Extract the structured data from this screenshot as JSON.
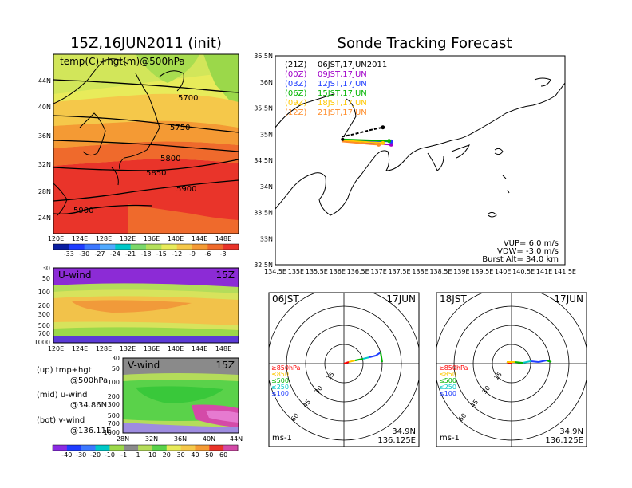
{
  "left_panel": {
    "title": "15Z,16JUN2011 (init)",
    "top_map": {
      "label": "temp(C)+hgt(m)@500hPa",
      "lat_ticks": [
        "44N",
        "40N",
        "36N",
        "32N",
        "28N",
        "24N"
      ],
      "lon_ticks": [
        "120E",
        "124E",
        "128E",
        "132E",
        "136E",
        "140E",
        "144E",
        "148E"
      ],
      "contour_labels": [
        "5700",
        "5750",
        "5800",
        "5850",
        "5900",
        "5900"
      ],
      "colorbar_ticks": [
        "-33",
        "-30",
        "-27",
        "-24",
        "-21",
        "-18",
        "-15",
        "-12",
        "-9",
        "-6",
        "-3"
      ]
    },
    "uwind": {
      "label": "U-wind",
      "time": "15Z",
      "y_ticks": [
        "30",
        "50",
        "100",
        "200",
        "300",
        "500",
        "700",
        "1000"
      ],
      "x_ticks": [
        "120E",
        "124E",
        "128E",
        "132E",
        "136E",
        "140E",
        "144E",
        "148E"
      ]
    },
    "vwind": {
      "label": "V-wind",
      "time": "15Z",
      "y_ticks": [
        "30",
        "50",
        "100",
        "200",
        "300",
        "500",
        "700",
        "1000"
      ],
      "x_ticks": [
        "28N",
        "32N",
        "36N",
        "40N",
        "44N"
      ],
      "colorbar_ticks": [
        "-40",
        "-30",
        "-20",
        "-10",
        "-1",
        "1",
        "10",
        "20",
        "30",
        "40",
        "50",
        "60"
      ]
    },
    "legend_lines": [
      "(up) tmp+hgt",
      "@500hPa",
      "(mid) u-wind",
      "@34.86N",
      "(bot) v-wind",
      "@136.11E"
    ]
  },
  "right_panel": {
    "title": "Sonde Tracking Forecast",
    "track_map": {
      "lat_ticks": [
        "36.5N",
        "36N",
        "35.5N",
        "35N",
        "34.5N",
        "34N",
        "33.5N",
        "33N",
        "32.5N"
      ],
      "lon_ticks": [
        "134.5E",
        "135E",
        "135.5E",
        "136E",
        "136.5E",
        "137E",
        "137.5E",
        "138E",
        "138.5E",
        "139E",
        "139.5E",
        "140E",
        "140.5E",
        "141E",
        "141.5E"
      ],
      "launches": [
        {
          "run": "(21Z)",
          "time": "06JST,17JUN2011",
          "color": "#000000"
        },
        {
          "run": "(00Z)",
          "time": "09JST,17JUN",
          "color": "#a000c8"
        },
        {
          "run": "(03Z)",
          "time": "12JST,17JUN",
          "color": "#1e3cff"
        },
        {
          "run": "(06Z)",
          "time": "15JST,17JUN",
          "color": "#00b400"
        },
        {
          "run": "(09Z)",
          "time": "18JST,17JUN",
          "color": "#ffc800"
        },
        {
          "run": "(12Z)",
          "time": "21JST,17JUN",
          "color": "#ff8c28"
        }
      ],
      "params": [
        "VUP= 6.0 m/s",
        "VDW= -3.0 m/s",
        "Burst Alt= 34.0 km"
      ]
    },
    "hodographs": [
      {
        "left": "06JST",
        "right": "17JUN"
      },
      {
        "left": "18JST",
        "right": "17JUN"
      }
    ],
    "hodo_common": {
      "ring_labels": [
        "15",
        "30",
        "45",
        "60"
      ],
      "levels": [
        "≥850hPa",
        "≤850",
        "≤500",
        "≤250",
        "≤100"
      ],
      "level_colors": [
        "#ff0000",
        "#ffc800",
        "#00b400",
        "#00c8c8",
        "#1e3cff"
      ],
      "unit": "ms-1",
      "lat": "34.9N",
      "lon": "136.125E"
    }
  },
  "chart_data": [
    {
      "type": "heatmap",
      "title": "15Z,16JUN2011 (init)",
      "subtitle": "temp(C)+hgt(m)@500hPa",
      "xlim": [
        120,
        149
      ],
      "ylim": [
        22,
        47
      ],
      "contours": [
        {
          "value": 5700,
          "label_at": [
            142.5,
            41.8
          ]
        },
        {
          "value": 5750,
          "label_at": [
            135.5,
            36.6
          ]
        },
        {
          "value": 5800,
          "label_at": [
            135.5,
            33.2
          ]
        },
        {
          "value": 5850,
          "label_at": [
            133,
            30.6
          ]
        },
        {
          "value": 5900,
          "label_at": [
            140.5,
            28.6
          ]
        },
        {
          "value": 5900,
          "label_at": [
            124,
            24.8
          ]
        }
      ],
      "colorbar": [
        -33,
        -30,
        -27,
        -24,
        -21,
        -18,
        -15,
        -12,
        -9,
        -6,
        -3
      ]
    },
    {
      "type": "heatmap",
      "label": "U-wind",
      "xlabel": "",
      "ylabel": "",
      "x_ticks": [
        "120E",
        "124E",
        "128E",
        "132E",
        "136E",
        "140E",
        "144E",
        "148E"
      ],
      "y_ticks": [
        30,
        50,
        100,
        200,
        300,
        500,
        700,
        1000
      ]
    },
    {
      "type": "heatmap",
      "label": "V-wind",
      "x_ticks": [
        "28N",
        "32N",
        "36N",
        "40N",
        "44N"
      ],
      "y_ticks": [
        30,
        50,
        100,
        200,
        300,
        500,
        700,
        1000
      ],
      "colorbar": [
        -40,
        -30,
        -20,
        -10,
        -1,
        1,
        10,
        20,
        30,
        40,
        50,
        60
      ]
    },
    {
      "type": "line",
      "title": "Sonde Tracking Forecast",
      "xlim": [
        134.5,
        141.5
      ],
      "ylim": [
        32.5,
        36.5
      ],
      "launch_point": {
        "lon": 136.125,
        "lat": 34.9
      },
      "series": [
        {
          "name": "(21Z) 06JST,17JUN2011",
          "color": "#000000",
          "x": [
            136.1,
            136.4,
            136.8,
            137.1
          ],
          "y": [
            34.95,
            35.0,
            35.08,
            35.13
          ]
        },
        {
          "name": "(00Z) 09JST,17JUN",
          "color": "#a000c8",
          "x": [
            136.1,
            136.5,
            136.9,
            137.3
          ],
          "y": [
            34.88,
            34.85,
            34.82,
            34.8
          ]
        },
        {
          "name": "(03Z) 12JST,17JUN",
          "color": "#1e3cff",
          "x": [
            136.1,
            136.5,
            136.9,
            137.3
          ],
          "y": [
            34.9,
            34.88,
            34.87,
            34.86
          ]
        },
        {
          "name": "(06Z) 15JST,17JUN",
          "color": "#00b400",
          "x": [
            136.1,
            136.5,
            136.9,
            137.25
          ],
          "y": [
            34.9,
            34.89,
            34.88,
            34.87
          ]
        },
        {
          "name": "(09Z) 18JST,17JUN",
          "color": "#ffc800",
          "x": [
            136.1,
            136.5,
            136.9,
            137.1
          ],
          "y": [
            34.88,
            34.86,
            34.84,
            34.83
          ]
        },
        {
          "name": "(12Z) 21JST,17JUN",
          "color": "#ff8c28",
          "x": [
            136.1,
            136.4,
            136.8,
            137.0
          ],
          "y": [
            34.86,
            34.84,
            34.81,
            34.8
          ]
        }
      ]
    }
  ]
}
